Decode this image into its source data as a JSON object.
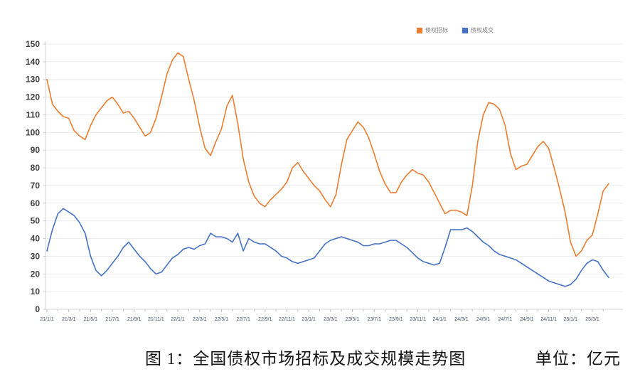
{
  "caption": {
    "figure_label": "图 1：全国债权市场招标及成交规模走势图",
    "unit_label": "单位：亿元"
  },
  "chart_data": {
    "type": "line",
    "title": "全国债权市场招标及成交规模走势图",
    "unit": "亿元",
    "grid": true,
    "legend_position": "top",
    "ylim": [
      0,
      150
    ],
    "y_tick_step": 10,
    "y_ticks": [
      0,
      10,
      20,
      30,
      40,
      50,
      60,
      70,
      80,
      90,
      100,
      110,
      120,
      130,
      140,
      150
    ],
    "x_tick_labels": [
      "21/1/1",
      "21/3/1",
      "21/5/1",
      "21/7/1",
      "21/9/1",
      "21/11/1",
      "22/1/1",
      "22/3/1",
      "22/5/1",
      "22/7/1",
      "22/9/1",
      "22/11/1",
      "23/1/1",
      "23/3/1",
      "23/5/1",
      "23/7/1",
      "23/9/1",
      "23/11/1",
      "24/1/1",
      "24/3/1",
      "24/5/1",
      "24/7/1",
      "24/9/1",
      "24/11/1",
      "25/1/1",
      "25/3/1"
    ],
    "x_dates": [
      "21/1/1",
      "21/1/16",
      "21/2/1",
      "21/2/16",
      "21/3/1",
      "21/3/16",
      "21/4/1",
      "21/4/16",
      "21/5/1",
      "21/5/16",
      "21/6/1",
      "21/6/16",
      "21/7/1",
      "21/7/16",
      "21/8/1",
      "21/8/16",
      "21/9/1",
      "21/9/16",
      "21/10/1",
      "21/10/16",
      "21/11/1",
      "21/11/16",
      "21/12/1",
      "21/12/16",
      "22/1/1",
      "22/1/16",
      "22/2/1",
      "22/2/16",
      "22/3/1",
      "22/3/16",
      "22/4/1",
      "22/4/16",
      "22/5/1",
      "22/5/16",
      "22/6/1",
      "22/6/16",
      "22/7/1",
      "22/7/16",
      "22/8/1",
      "22/8/16",
      "22/9/1",
      "22/9/16",
      "22/10/1",
      "22/10/16",
      "22/11/1",
      "22/11/16",
      "22/12/1",
      "22/12/16",
      "23/1/1",
      "23/1/16",
      "23/2/1",
      "23/2/16",
      "23/3/1",
      "23/3/16",
      "23/4/1",
      "23/4/16",
      "23/5/1",
      "23/5/16",
      "23/6/1",
      "23/6/16",
      "23/7/1",
      "23/7/16",
      "23/8/1",
      "23/8/16",
      "23/9/1",
      "23/9/16",
      "23/10/1",
      "23/10/16",
      "23/11/1",
      "23/11/16",
      "23/12/1",
      "23/12/16",
      "24/1/1",
      "24/1/16",
      "24/2/1",
      "24/2/16",
      "24/3/1",
      "24/3/16",
      "24/4/1",
      "24/4/16",
      "24/5/1",
      "24/5/16",
      "24/6/1",
      "24/6/16",
      "24/7/1",
      "24/7/16",
      "24/8/1",
      "24/8/16",
      "24/9/1",
      "24/9/16",
      "24/10/1",
      "24/10/16",
      "24/11/1",
      "24/11/16",
      "24/12/1",
      "24/12/16",
      "25/1/1",
      "25/1/16",
      "25/2/1",
      "25/2/16",
      "25/3/1",
      "25/3/16",
      "25/4/1",
      "25/4/16"
    ],
    "series": [
      {
        "name": "债权招标",
        "color": "#ED7D31",
        "values": [
          130,
          116,
          112,
          109,
          108,
          101,
          98,
          96,
          104,
          110,
          114,
          118,
          120,
          116,
          111,
          112,
          108,
          103,
          98,
          100,
          108,
          120,
          133,
          141,
          145,
          143,
          130,
          118,
          103,
          91,
          87,
          95,
          102,
          115,
          121,
          105,
          85,
          72,
          64,
          60,
          58,
          62,
          65,
          68,
          72,
          80,
          83,
          78,
          74,
          70,
          67,
          62,
          58,
          65,
          82,
          96,
          101,
          106,
          103,
          97,
          88,
          78,
          71,
          66,
          66,
          72,
          76,
          79,
          77,
          76,
          72,
          66,
          60,
          54,
          56,
          56,
          55,
          53,
          70,
          95,
          110,
          117,
          116,
          113,
          104,
          88,
          79,
          81,
          82,
          87,
          92,
          95,
          91,
          80,
          68,
          55,
          38,
          30,
          33,
          39,
          42,
          54,
          67,
          71
        ]
      },
      {
        "name": "债权成交",
        "color": "#4472C4",
        "values": [
          33,
          45,
          54,
          57,
          55,
          53,
          49,
          43,
          30,
          22,
          19,
          22,
          26,
          30,
          35,
          38,
          34,
          30,
          27,
          23,
          20,
          21,
          25,
          29,
          31,
          34,
          35,
          34,
          36,
          37,
          43,
          41,
          41,
          40,
          38,
          43,
          33,
          40,
          38,
          37,
          37,
          35,
          33,
          30,
          29,
          27,
          26,
          27,
          28,
          29,
          33,
          37,
          39,
          40,
          41,
          40,
          39,
          38,
          36,
          36,
          37,
          37,
          38,
          39,
          39,
          37,
          35,
          32,
          29,
          27,
          26,
          25,
          26,
          35,
          45,
          45,
          45,
          46,
          44,
          41,
          38,
          36,
          33,
          31,
          30,
          29,
          28,
          26,
          24,
          22,
          20,
          18,
          16,
          15,
          14,
          13,
          14,
          17,
          22,
          26,
          28,
          27,
          22,
          18
        ]
      }
    ]
  }
}
